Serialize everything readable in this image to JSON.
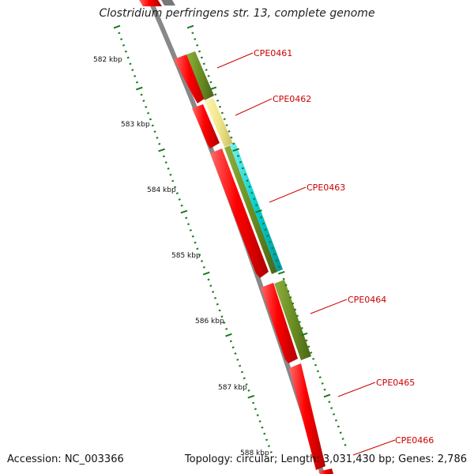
{
  "title": "Clostridium perfringens str. 13, complete genome",
  "footer": {
    "accession": "Accession: NC_003366",
    "summary": "Topology: circular; Length: 3,031,430 bp; Genes: 2,786"
  },
  "axis": {
    "tick_labels": [
      "582 kbp",
      "583 kbp",
      "584 kbp",
      "585 kbp",
      "586 kbp",
      "587 kbp",
      "588 kbp"
    ]
  },
  "genes": [
    {
      "label": "CPE0461"
    },
    {
      "label": "CPE0462"
    },
    {
      "label": "CPE0463"
    },
    {
      "label": "CPE0464"
    },
    {
      "label": "CPE0465"
    },
    {
      "label": "CPE0466"
    }
  ],
  "colors": {
    "cds": "#ff0000",
    "tick": "#1a7a1a",
    "backbone": "#888888",
    "label": "#cc0000",
    "olive": "#6b8e23",
    "khaki": "#f0e68c",
    "cyan": "#00ced1"
  }
}
